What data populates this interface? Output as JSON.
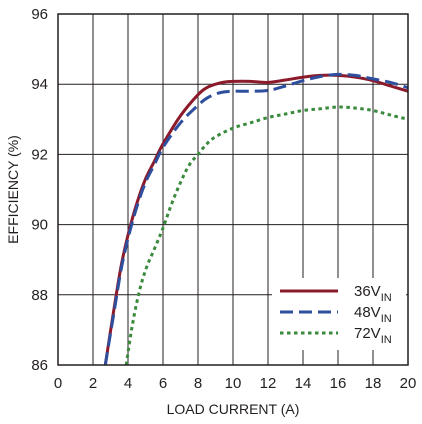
{
  "chart_data": {
    "type": "line",
    "xlabel": "LOAD CURRENT (A)",
    "ylabel": "EFFICIENCY (%)",
    "xlim": [
      0,
      20
    ],
    "ylim": [
      86,
      96
    ],
    "x_ticks": [
      "0",
      "2",
      "4",
      "6",
      "8",
      "10",
      "12",
      "14",
      "16",
      "18",
      "20"
    ],
    "y_ticks": [
      "86",
      "88",
      "90",
      "92",
      "94",
      "96"
    ],
    "grid": true,
    "legend_position": "bottom-right",
    "series": [
      {
        "name_main": "36V",
        "name_sub": "IN",
        "color": "#8b1a2b",
        "style": "solid",
        "x": [
          2.7,
          3.2,
          3.6,
          4.0,
          4.5,
          5.0,
          5.5,
          6.0,
          7.0,
          8.0,
          8.5,
          9.0,
          9.5,
          10.0,
          11.0,
          12.0,
          13.0,
          14.0,
          15.0,
          16.0,
          17.0,
          18.0,
          19.0,
          20.0
        ],
        "y": [
          86.0,
          87.6,
          88.8,
          89.7,
          90.6,
          91.3,
          91.8,
          92.3,
          93.1,
          93.7,
          93.9,
          94.0,
          94.06,
          94.08,
          94.08,
          94.05,
          94.12,
          94.2,
          94.25,
          94.25,
          94.2,
          94.1,
          93.95,
          93.8
        ]
      },
      {
        "name_main": "48V",
        "name_sub": "IN",
        "color": "#2d4f9e",
        "style": "dashed",
        "x": [
          2.7,
          3.2,
          3.6,
          4.0,
          4.5,
          5.0,
          5.5,
          6.0,
          7.0,
          8.0,
          8.5,
          9.0,
          9.5,
          10.0,
          11.0,
          12.0,
          13.0,
          14.0,
          15.0,
          16.0,
          17.0,
          18.0,
          19.0,
          20.0
        ],
        "y": [
          86.0,
          87.5,
          88.7,
          89.6,
          90.5,
          91.2,
          91.7,
          92.2,
          92.9,
          93.4,
          93.6,
          93.72,
          93.78,
          93.8,
          93.8,
          93.82,
          93.95,
          94.1,
          94.22,
          94.28,
          94.25,
          94.15,
          94.05,
          93.9
        ]
      },
      {
        "name_main": "72V",
        "name_sub": "IN",
        "color": "#3a8a3e",
        "style": "dotted",
        "x": [
          3.9,
          4.2,
          4.6,
          5.0,
          5.5,
          6.0,
          6.5,
          7.0,
          7.5,
          8.0,
          8.5,
          9.0,
          10.0,
          11.0,
          12.0,
          13.0,
          14.0,
          15.0,
          16.0,
          17.0,
          18.0,
          19.0,
          20.0
        ],
        "y": [
          86.0,
          87.0,
          88.0,
          88.7,
          89.3,
          89.9,
          90.6,
          91.2,
          91.7,
          92.0,
          92.3,
          92.5,
          92.75,
          92.9,
          93.05,
          93.15,
          93.25,
          93.3,
          93.35,
          93.32,
          93.25,
          93.12,
          93.0
        ]
      }
    ]
  }
}
